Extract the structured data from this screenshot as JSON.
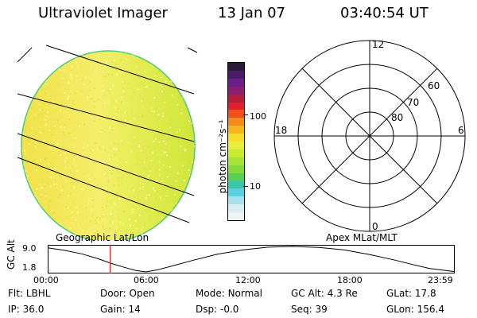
{
  "header": {
    "instrument": "Ultraviolet Imager",
    "date": "13 Jan 07",
    "time": "03:40:54 UT"
  },
  "colorbar": {
    "unit_label": "photon cm⁻²s⁻¹",
    "tick_labels": [
      "100",
      "10"
    ],
    "colors": [
      "#2b1a3a",
      "#4a1a66",
      "#6a1f8a",
      "#8a1f70",
      "#b51e3a",
      "#e0202a",
      "#f24f1a",
      "#f28a1a",
      "#f6b61f",
      "#f6dc2a",
      "#e8ef3a",
      "#c7ec2f",
      "#a7e338",
      "#83d83a",
      "#57d056",
      "#34c8a8",
      "#5bd0e4",
      "#a9e1ee",
      "#d9ecf0",
      "#eef3f3"
    ]
  },
  "polar": {
    "mlt_labels": [
      "12",
      "18",
      "6",
      "0"
    ],
    "mlat_labels": [
      "60",
      "70",
      "80"
    ]
  },
  "timeline": {
    "left_label": "Geographic Lat/Lon",
    "right_label": "Apex MLat/MLT",
    "y_axis_title": "GC Alt",
    "y_ticks": [
      "9.0",
      "1.8"
    ],
    "x_ticks": [
      "00:00",
      "06:00",
      "12:00",
      "18:00",
      "23:59"
    ],
    "colors": {
      "marker": "#d22020",
      "curve": "#000000"
    }
  },
  "chart_data": {
    "type": "line",
    "xlabel": "",
    "ylabel": "GC Alt",
    "xlim": [
      0,
      24
    ],
    "ylim": [
      1.8,
      9.0
    ],
    "series": [
      {
        "x": [
          0,
          1,
          2,
          3,
          3.68,
          4.5,
          5.2,
          5.8,
          6.5,
          7.5,
          8.5,
          10,
          11.5,
          13,
          14.5,
          16,
          17.5,
          19,
          20.5,
          21.5,
          22.5,
          23.98
        ],
        "y": [
          8.6,
          7.9,
          6.9,
          5.5,
          4.3,
          3.1,
          2.2,
          1.8,
          2.4,
          3.7,
          5.0,
          6.8,
          8.0,
          8.8,
          9.0,
          8.7,
          8.0,
          6.7,
          5.1,
          3.9,
          2.8,
          1.9
        ]
      }
    ],
    "marker_x": 3.68
  },
  "status": {
    "row1": [
      {
        "label": "Flt:",
        "value": "LBHL"
      },
      {
        "label": "Door:",
        "value": "Open"
      },
      {
        "label": "Mode:",
        "value": "Normal"
      },
      {
        "label": "GC Alt:",
        "value": "4.3 Re"
      },
      {
        "label": "GLat:",
        "value": "17.8"
      }
    ],
    "row2": [
      {
        "label": "IP:",
        "value": "36.0"
      },
      {
        "label": "Gain:",
        "value": "14"
      },
      {
        "label": "Dsp:",
        "value": "-0.0"
      },
      {
        "label": "Seq:",
        "value": "39"
      },
      {
        "label": "GLon:",
        "value": "156.4"
      }
    ]
  }
}
